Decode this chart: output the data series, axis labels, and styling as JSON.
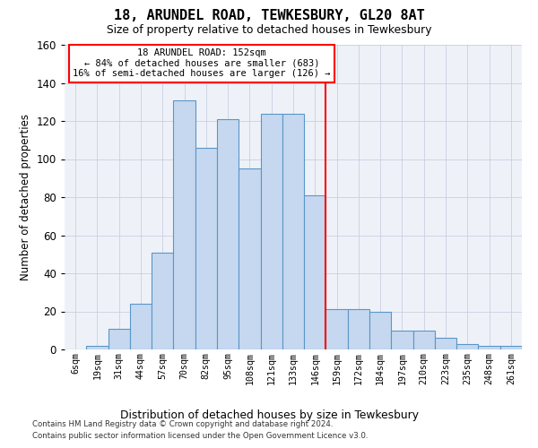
{
  "title": "18, ARUNDEL ROAD, TEWKESBURY, GL20 8AT",
  "subtitle": "Size of property relative to detached houses in Tewkesbury",
  "xlabel": "Distribution of detached houses by size in Tewkesbury",
  "ylabel": "Number of detached properties",
  "categories": [
    "6sqm",
    "19sqm",
    "31sqm",
    "44sqm",
    "57sqm",
    "70sqm",
    "82sqm",
    "95sqm",
    "108sqm",
    "121sqm",
    "133sqm",
    "146sqm",
    "159sqm",
    "172sqm",
    "184sqm",
    "197sqm",
    "210sqm",
    "223sqm",
    "235sqm",
    "248sqm",
    "261sqm"
  ],
  "values": [
    0,
    2,
    11,
    24,
    51,
    131,
    106,
    121,
    95,
    124,
    124,
    81,
    21,
    21,
    20,
    10,
    10,
    6,
    3,
    2,
    2
  ],
  "bar_color": "#c5d8f0",
  "bar_edge_color": "#5a96c8",
  "annotation_line1": "18 ARUNDEL ROAD: 152sqm",
  "annotation_line2": "← 84% of detached houses are smaller (683)",
  "annotation_line3": "16% of semi-detached houses are larger (126) →",
  "ylim_max": 160,
  "yticks": [
    0,
    20,
    40,
    60,
    80,
    100,
    120,
    140,
    160
  ],
  "grid_color": "#c8d0e0",
  "bg_color": "#eef2f8",
  "footer1": "Contains HM Land Registry data © Crown copyright and database right 2024.",
  "footer2": "Contains public sector information licensed under the Open Government Licence v3.0."
}
